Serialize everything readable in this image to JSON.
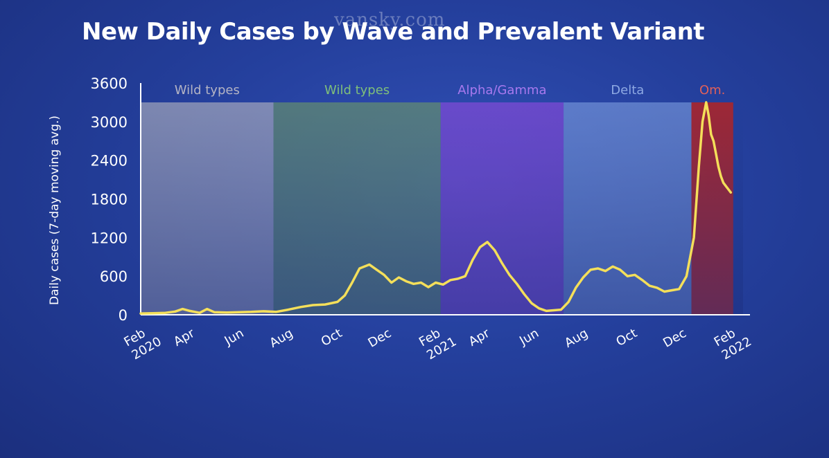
{
  "watermark": "vansky.com",
  "colors": {
    "line": "#f4df5a",
    "background": "#2541a0",
    "axis": "#ffffff"
  },
  "chart_data": {
    "type": "line",
    "title": "New Daily Cases by Wave and Prevalent Variant",
    "xlabel": "",
    "ylabel": "Daily cases (7-day moving avg.)",
    "xlim": [
      0,
      24.5
    ],
    "ylim": [
      0,
      3600
    ],
    "yticks": [
      0,
      600,
      1200,
      1800,
      2400,
      3000,
      3600
    ],
    "xticks": [
      {
        "x": 0,
        "label": "Feb",
        "sub": "2020"
      },
      {
        "x": 2,
        "label": "Apr",
        "sub": ""
      },
      {
        "x": 4,
        "label": "Jun",
        "sub": ""
      },
      {
        "x": 6,
        "label": "Aug",
        "sub": ""
      },
      {
        "x": 8,
        "label": "Oct",
        "sub": ""
      },
      {
        "x": 10,
        "label": "Dec",
        "sub": ""
      },
      {
        "x": 12,
        "label": "Feb",
        "sub": "2021"
      },
      {
        "x": 14,
        "label": "Apr",
        "sub": ""
      },
      {
        "x": 16,
        "label": "Jun",
        "sub": ""
      },
      {
        "x": 18,
        "label": "Aug",
        "sub": ""
      },
      {
        "x": 20,
        "label": "Oct",
        "sub": ""
      },
      {
        "x": 22,
        "label": "Dec",
        "sub": ""
      },
      {
        "x": 24,
        "label": "Feb",
        "sub": "2022"
      }
    ],
    "waves": [
      {
        "label": "Wild types",
        "start": 0,
        "end": 5.4,
        "fill": "#c9c4c4",
        "opacity": 0.55,
        "label_color": "#b4b4c4"
      },
      {
        "label": "Wild types",
        "start": 5.4,
        "end": 12.2,
        "fill": "#6f9c66",
        "opacity": 0.6,
        "label_color": "#7fbf7a"
      },
      {
        "label": "Alpha/Gamma",
        "start": 12.2,
        "end": 17.2,
        "fill": "#8a4cdb",
        "opacity": 0.65,
        "label_color": "#a879ee"
      },
      {
        "label": "Delta",
        "start": 17.2,
        "end": 22.4,
        "fill": "#87a8e6",
        "opacity": 0.55,
        "label_color": "#8ea9e3"
      },
      {
        "label": "Om.",
        "start": 22.4,
        "end": 24.1,
        "fill": "#b32424",
        "opacity": 0.85,
        "label_color": "#e0605a"
      }
    ],
    "series": [
      {
        "name": "Daily cases (7-day moving avg.)",
        "x": [
          0,
          0.5,
          1,
          1.4,
          1.7,
          2,
          2.4,
          2.7,
          3,
          3.5,
          4,
          4.5,
          5,
          5.5,
          6,
          6.5,
          7,
          7.5,
          8,
          8.3,
          8.6,
          8.9,
          9.3,
          9.6,
          9.9,
          10.2,
          10.5,
          10.8,
          11.1,
          11.4,
          11.7,
          12,
          12.3,
          12.6,
          12.9,
          13.2,
          13.5,
          13.8,
          14.1,
          14.4,
          14.7,
          15.0,
          15.3,
          15.6,
          15.9,
          16.2,
          16.5,
          16.8,
          17.1,
          17.4,
          17.7,
          18.0,
          18.3,
          18.6,
          18.9,
          19.2,
          19.5,
          19.8,
          20.1,
          20.4,
          20.7,
          21.0,
          21.3,
          21.6,
          21.9,
          22.2,
          22.5,
          22.7,
          22.85,
          23.0,
          23.1,
          23.2,
          23.3,
          23.4,
          23.5,
          23.6,
          23.7,
          23.8,
          23.9,
          24.0
        ],
        "values": [
          20,
          25,
          30,
          50,
          90,
          60,
          30,
          90,
          40,
          35,
          40,
          45,
          55,
          45,
          80,
          120,
          150,
          160,
          200,
          300,
          500,
          720,
          780,
          700,
          620,
          500,
          580,
          520,
          480,
          500,
          430,
          500,
          470,
          540,
          560,
          600,
          850,
          1050,
          1130,
          1000,
          800,
          620,
          480,
          320,
          180,
          100,
          60,
          70,
          80,
          200,
          420,
          580,
          700,
          720,
          680,
          750,
          700,
          600,
          620,
          540,
          450,
          420,
          360,
          380,
          400,
          600,
          1200,
          2300,
          3000,
          3300,
          3100,
          2800,
          2700,
          2500,
          2300,
          2150,
          2050,
          2000,
          1950,
          1900
        ]
      }
    ]
  }
}
